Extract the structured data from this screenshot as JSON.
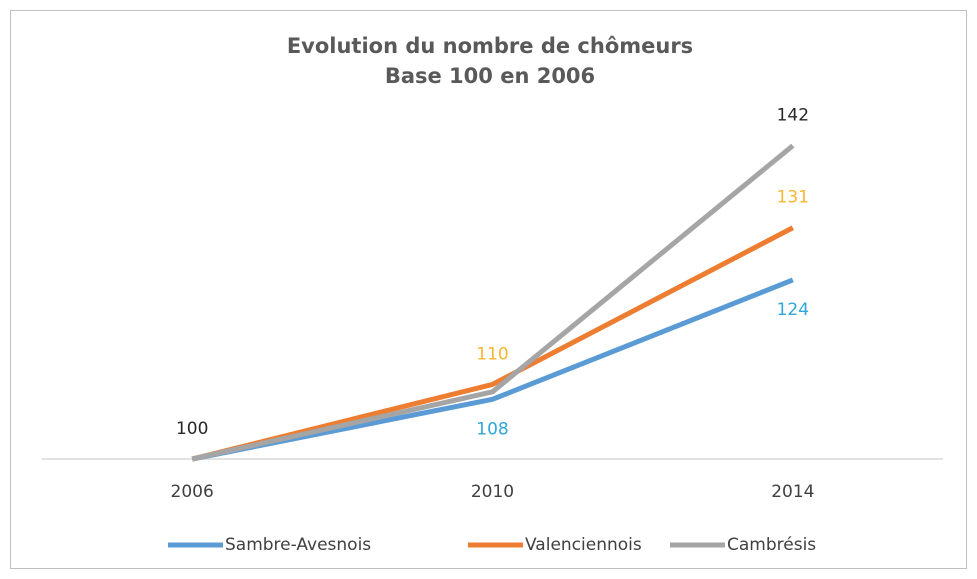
{
  "chart_data": {
    "type": "line",
    "title": "Evolution du nombre de chômeurs",
    "subtitle": "Base 100 en 2006",
    "categories": [
      "2006",
      "2010",
      "2014"
    ],
    "series": [
      {
        "name": "Sambre-Avesnois",
        "color": "#5b9bd5",
        "label_color": "#2ea6d9",
        "label_position": "below",
        "labeled": [
          1,
          2
        ],
        "values": [
          100,
          108,
          124
        ]
      },
      {
        "name": "Valenciennois",
        "color": "#ed7d31",
        "label_color": "#f5b731",
        "label_position": "above",
        "labeled": [
          1,
          2
        ],
        "values": [
          100,
          110,
          131
        ]
      },
      {
        "name": "Cambrésis",
        "color": "#a5a5a5",
        "label_color": "#262626",
        "label_position": "above",
        "labeled": [
          0,
          2
        ],
        "values": [
          100,
          109,
          142
        ]
      }
    ],
    "ylim": [
      100,
      150
    ],
    "legend": "bottom"
  }
}
